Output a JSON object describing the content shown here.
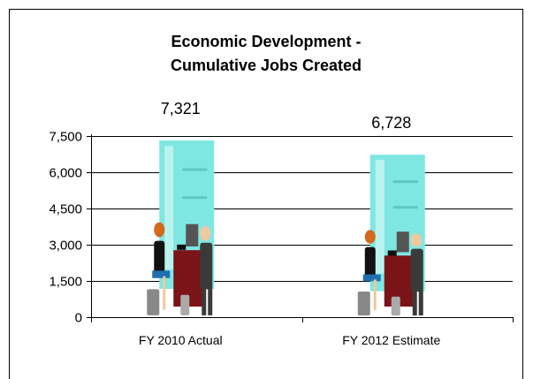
{
  "chart_data": {
    "type": "bar",
    "title_lines": [
      "Economic Development -",
      "Cumulative Jobs Created"
    ],
    "categories": [
      "FY 2010 Actual",
      "FY 2012 Estimate"
    ],
    "values": [
      7321,
      6728
    ],
    "data_labels": [
      "7,321",
      "6,728"
    ],
    "ylim": [
      0,
      7500
    ],
    "yticks": [
      0,
      1500,
      3000,
      4500,
      6000,
      7500
    ],
    "ytick_labels": [
      "0",
      "1,500",
      "3,000",
      "4,500",
      "6,000",
      "7,500"
    ],
    "grid": true,
    "legend": "none",
    "bar_fill": "picture-of-office-workers",
    "colors": {
      "panel": "#7fe7e2",
      "panel_light": "#b9f3f0",
      "desk": "#7a1418",
      "suit": "#3a3a3a",
      "hair": "#d2691e"
    }
  }
}
